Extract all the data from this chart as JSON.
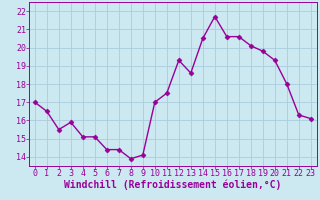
{
  "x": [
    0,
    1,
    2,
    3,
    4,
    5,
    6,
    7,
    8,
    9,
    10,
    11,
    12,
    13,
    14,
    15,
    16,
    17,
    18,
    19,
    20,
    21,
    22,
    23
  ],
  "y": [
    17.0,
    16.5,
    15.5,
    15.9,
    15.1,
    15.1,
    14.4,
    14.4,
    13.9,
    14.1,
    17.0,
    17.5,
    19.3,
    18.6,
    20.5,
    21.7,
    20.6,
    20.6,
    20.1,
    19.8,
    19.3,
    18.0,
    16.3,
    16.1
  ],
  "line_color": "#990099",
  "marker": "D",
  "marker_size": 2.5,
  "bg_color": "#cce8f0",
  "grid_color": "#aaccdd",
  "xlabel": "Windchill (Refroidissement éolien,°C)",
  "xlabel_fontsize": 7,
  "ylim": [
    13.5,
    22.5
  ],
  "xlim": [
    -0.5,
    23.5
  ],
  "yticks": [
    14,
    15,
    16,
    17,
    18,
    19,
    20,
    21,
    22
  ],
  "xticks": [
    0,
    1,
    2,
    3,
    4,
    5,
    6,
    7,
    8,
    9,
    10,
    11,
    12,
    13,
    14,
    15,
    16,
    17,
    18,
    19,
    20,
    21,
    22,
    23
  ],
  "tick_fontsize": 6,
  "line_width": 1.0
}
